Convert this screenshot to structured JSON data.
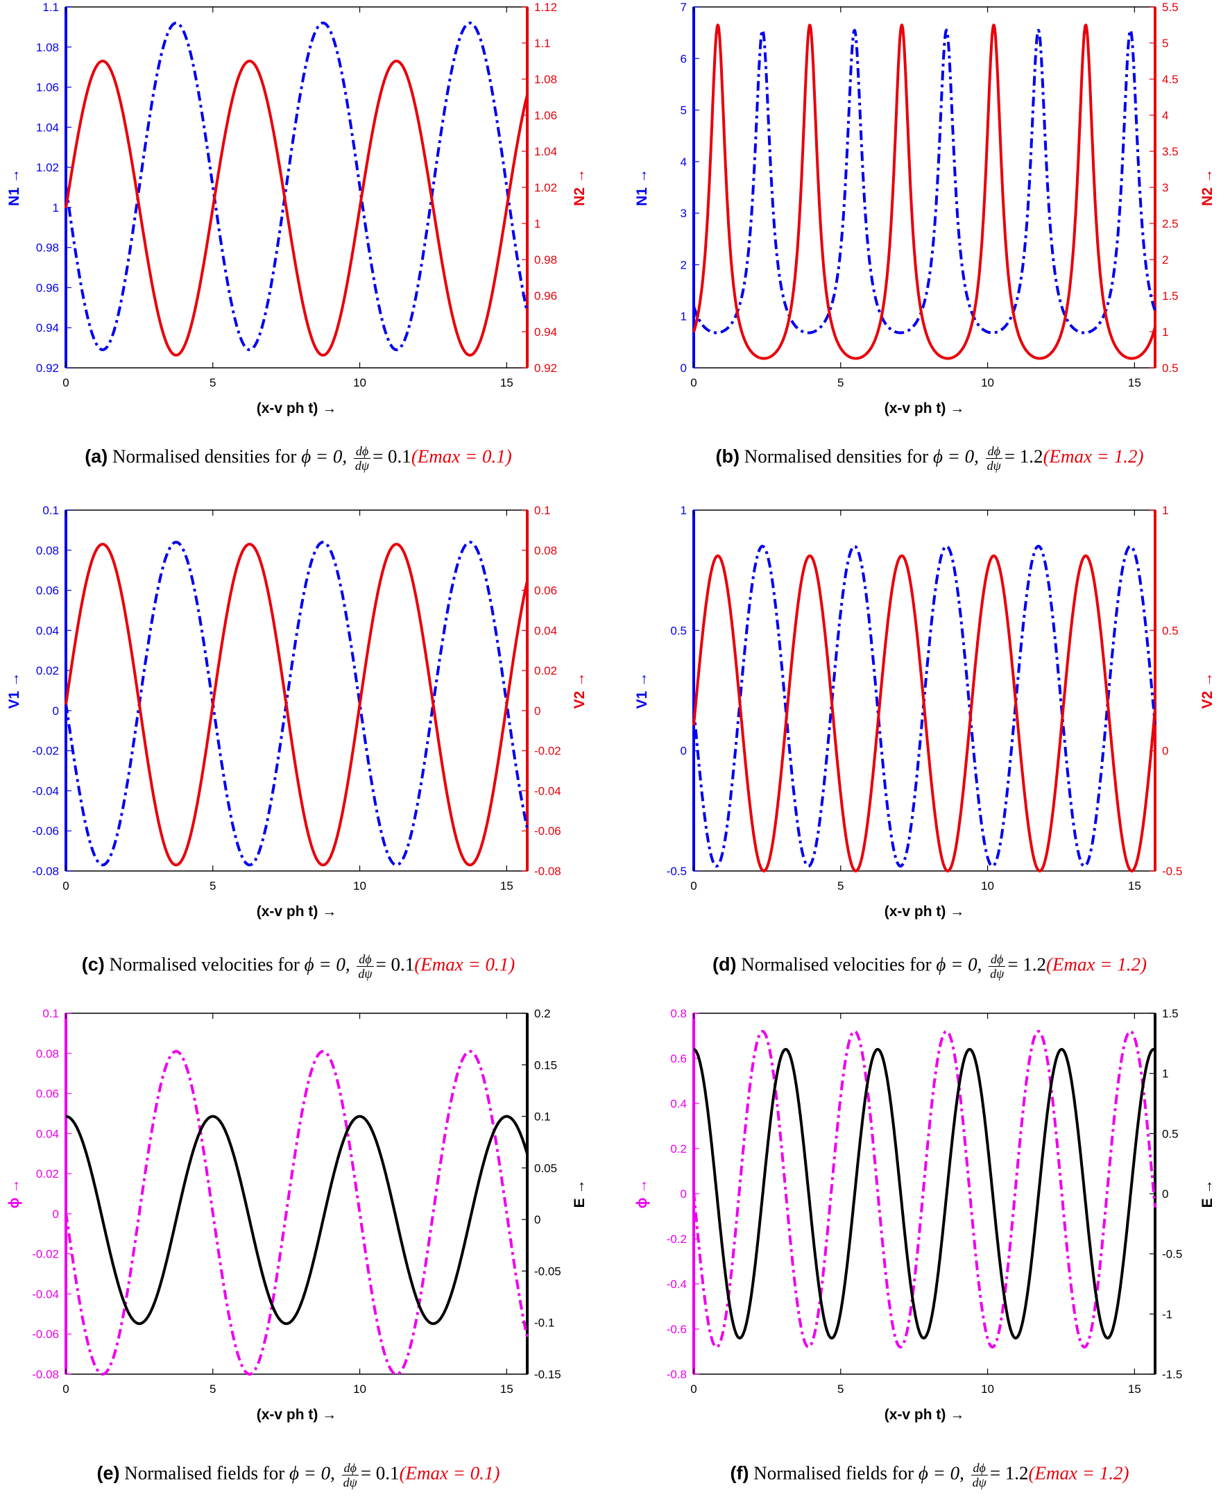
{
  "figure": {
    "captions": [
      {
        "tag": "(a)",
        "text": "Normalised densities for",
        "phi": "ϕ = 0,",
        "dnum": "dϕ",
        "dden": "dψ",
        "eq": "= 0.1",
        "emax": "(Emax = 0.1)"
      },
      {
        "tag": "(b)",
        "text": "Normalised densities for",
        "phi": "ϕ = 0,",
        "dnum": "dϕ",
        "dden": "dψ",
        "eq": "= 1.2",
        "emax": "(Emax = 1.2)"
      },
      {
        "tag": "(c)",
        "text": "Normalised velocities for",
        "phi": "ϕ = 0,",
        "dnum": "dϕ",
        "dden": "dψ",
        "eq": "= 0.1",
        "emax": "(Emax = 0.1)"
      },
      {
        "tag": "(d)",
        "text": "Normalised velocities for",
        "phi": "ϕ = 0,",
        "dnum": "dϕ",
        "dden": "dψ",
        "eq": "= 1.2",
        "emax": "(Emax = 1.2)"
      },
      {
        "tag": "(e)",
        "text": "Normalised fields for",
        "phi": "ϕ = 0,",
        "dnum": "dϕ",
        "dden": "dψ",
        "eq": "= 0.1",
        "emax": "(Emax = 0.1)"
      },
      {
        "tag": "(f)",
        "text": "Normalised fields for",
        "phi": "ϕ = 0,",
        "dnum": "dϕ",
        "dden": "dψ",
        "eq": "= 1.2",
        "emax": "(Emax = 1.2)"
      }
    ]
  },
  "chart_data": [
    {
      "type": "line",
      "panel": "(a)",
      "xlabel": "(x-v ph t) →",
      "xlim": [
        0,
        15.7
      ],
      "xticks": [
        0,
        5,
        10,
        15
      ],
      "ylabel_left": "N1 →",
      "ylim_left": [
        0.92,
        1.1
      ],
      "yticks_left": [
        "0.92",
        "0.94",
        "0.96",
        "0.98",
        "1",
        "1.02",
        "1.04",
        "1.06",
        "1.08",
        "1.1"
      ],
      "ylabel_right": "N2 →",
      "ylim_right": [
        0.92,
        1.12
      ],
      "yticks_right": [
        "0.92",
        "0.94",
        "0.96",
        "0.98",
        "1",
        "1.02",
        "1.04",
        "1.06",
        "1.08",
        "1.1",
        "1.12"
      ],
      "series": [
        {
          "axis": "left",
          "color": "#0000ee",
          "dash": "dashdot",
          "model": "cos",
          "min": 0.929,
          "max": 1.092,
          "period": 5.0,
          "peaks": [
            3.75,
            8.75,
            13.75
          ]
        },
        {
          "axis": "right",
          "color": "#e8000b",
          "dash": "solid",
          "model": "cos",
          "min": 0.927,
          "max": 1.09,
          "period": 5.0,
          "peaks": [
            1.25,
            6.25,
            11.25
          ]
        }
      ]
    },
    {
      "type": "line",
      "panel": "(b)",
      "xlabel": "(x-v ph t) →",
      "xlim": [
        0,
        15.7
      ],
      "xticks": [
        0,
        5,
        10,
        15
      ],
      "ylabel_left": "N1 →",
      "ylim_left": [
        0,
        7
      ],
      "yticks_left": [
        "0",
        "1",
        "2",
        "3",
        "4",
        "5",
        "6",
        "7"
      ],
      "ylabel_right": "N2 →",
      "ylim_right": [
        0.5,
        5.5
      ],
      "yticks_right": [
        "0.5",
        "1",
        "1.5",
        "2",
        "2.5",
        "3",
        "3.5",
        "4",
        "4.5",
        "5",
        "5.5"
      ],
      "series": [
        {
          "axis": "left",
          "color": "#0000ee",
          "dash": "dashdot",
          "model": "peaked",
          "min": 0.68,
          "max": 6.55,
          "period": 3.13,
          "peaks": [
            2.34,
            5.47,
            8.6,
            11.73,
            14.86
          ]
        },
        {
          "axis": "right",
          "color": "#e8000b",
          "dash": "solid",
          "model": "peaked",
          "min": 0.63,
          "max": 5.25,
          "period": 3.13,
          "peaks": [
            0.82,
            3.95,
            7.08,
            10.21,
            13.34
          ]
        }
      ]
    },
    {
      "type": "line",
      "panel": "(c)",
      "xlabel": "(x-v ph t) →",
      "xlim": [
        0,
        15.7
      ],
      "xticks": [
        0,
        5,
        10,
        15
      ],
      "ylabel_left": "V1 →",
      "ylim_left": [
        -0.08,
        0.1
      ],
      "yticks_left": [
        "-0.08",
        "-0.06",
        "-0.04",
        "-0.02",
        "0",
        "0.02",
        "0.04",
        "0.06",
        "0.08",
        "0.1"
      ],
      "ylabel_right": "V2 →",
      "ylim_right": [
        -0.08,
        0.1
      ],
      "yticks_right": [
        "-0.08",
        "-0.06",
        "-0.04",
        "-0.02",
        "0",
        "0.02",
        "0.04",
        "0.06",
        "0.08",
        "0.1"
      ],
      "series": [
        {
          "axis": "left",
          "color": "#0000ee",
          "dash": "dashdot",
          "model": "cos",
          "min": -0.077,
          "max": 0.084,
          "period": 5.0,
          "peaks": [
            3.75,
            8.75,
            13.75
          ]
        },
        {
          "axis": "right",
          "color": "#e8000b",
          "dash": "solid",
          "model": "cos",
          "min": -0.077,
          "max": 0.083,
          "period": 5.0,
          "peaks": [
            1.25,
            6.25,
            11.25
          ]
        }
      ]
    },
    {
      "type": "line",
      "panel": "(d)",
      "xlabel": "(x-v ph t) →",
      "xlim": [
        0,
        15.7
      ],
      "xticks": [
        0,
        5,
        10,
        15
      ],
      "ylabel_left": "V1 →",
      "ylim_left": [
        -0.5,
        1
      ],
      "yticks_left": [
        "-0.5",
        "0",
        "0.5",
        "1"
      ],
      "ylabel_right": "V2 →",
      "ylim_right": [
        -0.5,
        1
      ],
      "yticks_right": [
        "-0.5",
        "0",
        "0.5",
        "1"
      ],
      "series": [
        {
          "axis": "left",
          "color": "#0000ee",
          "dash": "dashdot",
          "model": "cos",
          "min": -0.48,
          "max": 0.85,
          "period": 3.13,
          "peaks": [
            2.34,
            5.47,
            8.6,
            11.73,
            14.86
          ]
        },
        {
          "axis": "right",
          "color": "#e8000b",
          "dash": "solid",
          "model": "cos",
          "min": -0.5,
          "max": 0.81,
          "period": 3.13,
          "peaks": [
            0.82,
            3.95,
            7.08,
            10.21,
            13.34
          ]
        }
      ]
    },
    {
      "type": "line",
      "panel": "(e)",
      "xlabel": "(x-v ph t) →",
      "xlim": [
        0,
        15.7
      ],
      "xticks": [
        0,
        5,
        10,
        15
      ],
      "ylabel_left": "ϕ →",
      "ylim_left": [
        -0.08,
        0.1
      ],
      "yticks_left": [
        "-0.08",
        "-0.06",
        "-0.04",
        "-0.02",
        "0",
        "0.02",
        "0.04",
        "0.06",
        "0.08",
        "0.1"
      ],
      "ylabel_right": "E →",
      "ylim_right": [
        -0.15,
        0.2
      ],
      "yticks_right": [
        "-0.15",
        "-0.1",
        "-0.05",
        "0",
        "0.05",
        "0.1",
        "0.15",
        "0.2"
      ],
      "series": [
        {
          "axis": "left",
          "color": "#ee00ee",
          "dash": "dashdot",
          "model": "cos",
          "min": -0.08,
          "max": 0.081,
          "period": 5.0,
          "peaks": [
            3.75,
            8.75,
            13.75
          ]
        },
        {
          "axis": "right",
          "color": "#000000",
          "dash": "solid",
          "model": "cos",
          "min": -0.101,
          "max": 0.1,
          "period": 5.0,
          "peaks": [
            0.0,
            5.0,
            10.0,
            15.0
          ]
        }
      ]
    },
    {
      "type": "line",
      "panel": "(f)",
      "xlabel": "(x-v ph t) →",
      "xlim": [
        0,
        15.7
      ],
      "xticks": [
        0,
        5,
        10,
        15
      ],
      "ylabel_left": "ϕ →",
      "ylim_left": [
        -0.8,
        0.8
      ],
      "yticks_left": [
        "-0.8",
        "-0.6",
        "-0.4",
        "-0.2",
        "0",
        "0.2",
        "0.4",
        "0.6",
        "0.8"
      ],
      "ylabel_right": "E →",
      "ylim_right": [
        -1.5,
        1.5
      ],
      "yticks_right": [
        "-1.5",
        "-1",
        "-0.5",
        "0",
        "0.5",
        "1",
        "1.5"
      ],
      "series": [
        {
          "axis": "left",
          "color": "#ee00ee",
          "dash": "dashdot",
          "model": "cos",
          "min": -0.68,
          "max": 0.72,
          "period": 3.13,
          "peaks": [
            2.34,
            5.47,
            8.6,
            11.73,
            14.86
          ]
        },
        {
          "axis": "right",
          "color": "#000000",
          "dash": "solid",
          "model": "cos",
          "min": -1.2,
          "max": 1.2,
          "period": 3.13,
          "peaks": [
            0.0,
            3.13,
            6.26,
            9.39,
            12.52,
            15.65
          ]
        }
      ]
    }
  ]
}
